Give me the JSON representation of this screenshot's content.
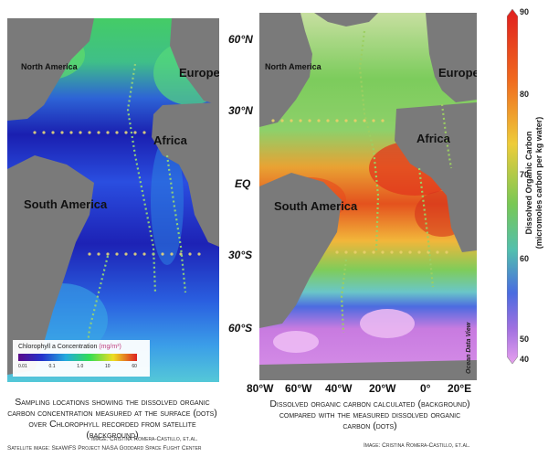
{
  "left_map": {
    "labels": {
      "north_america": "North America",
      "europe": "Europe",
      "africa": "Africa",
      "south_america": "South America"
    },
    "legend": {
      "title": "Chlorophyll a Concentration",
      "unit": "(mg/m³)",
      "ticks": [
        "0.01",
        "0.1",
        "1.0",
        "10",
        "60"
      ]
    },
    "caption": "Sampling locations showing the dissolved organic carbon concentration measured at the surface (dots) over Chlorophyll recorded from satellite (background)",
    "credit1": "Image: Cristina Romera-Castillo, et.al.",
    "credit2": "Satellite image: SeaWiFS Project NASA Goddard Space Flight Center"
  },
  "right_map": {
    "labels": {
      "north_america": "North America",
      "europe": "Europe",
      "africa": "Africa",
      "south_america": "South America"
    },
    "lat_labels": [
      "60°N",
      "30°N",
      "EQ",
      "30°S",
      "60°S"
    ],
    "lon_labels": [
      "80°W",
      "60°W",
      "40°W",
      "20°W",
      "0°",
      "20°E"
    ],
    "odv": "Ocean Data View",
    "caption": "Dissolved organic carbon calculated (background) compared with the measured dissolved organic carbon (dots)",
    "credit": "Image: Cristina Romera-Castillo, et.al."
  },
  "colorbar": {
    "title_line1": "Dissolved Organic Carbon",
    "title_line2": "(micromoles carbon per kg water)",
    "ticks": [
      "90",
      "80",
      "70",
      "60",
      "50",
      "40"
    ],
    "range": [
      40,
      90
    ]
  },
  "colors": {
    "land": "#7a7a7a",
    "ocean_low_chl": "#2233cc",
    "ocean_high_chl": "#33dd55",
    "doc_high": "#e83a1c",
    "doc_mid": "#7cc65a",
    "doc_low": "#d07be0"
  }
}
